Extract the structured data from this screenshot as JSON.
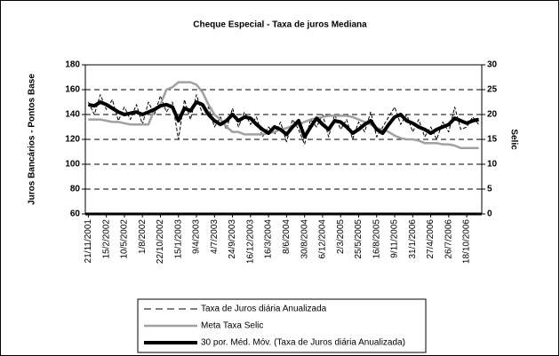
{
  "chart_data": {
    "type": "line",
    "title": "Cheque Especial - Taxa de juros Mediana",
    "y_label": "Juros Bancários - Pontos Base",
    "y2_label": "Selic",
    "categories": [
      "21/11/2001",
      null,
      null,
      "15/2/2002",
      null,
      null,
      "10/5/2002",
      null,
      null,
      "1/8/2002",
      null,
      null,
      "22/10/2002",
      null,
      null,
      "15/1/2003",
      null,
      null,
      "9/4/2003",
      null,
      null,
      "4/7/2003",
      null,
      null,
      "24/9/2003",
      null,
      null,
      "16/12/2003",
      null,
      null,
      "16/3/2004",
      null,
      null,
      "8/6/2004",
      null,
      null,
      "30/8/2004",
      null,
      null,
      "6/12/2004",
      null,
      null,
      "2/3/2005",
      null,
      null,
      "25/5/2005",
      null,
      null,
      "16/8/2005",
      null,
      null,
      "9/11/2005",
      null,
      null,
      "31/1/2006",
      null,
      null,
      "27/4/2006",
      null,
      null,
      "26/7/2006",
      null,
      null,
      "18/10/2006",
      null,
      null
    ],
    "ylim": [
      60,
      180
    ],
    "yticks": [
      60,
      80,
      100,
      120,
      140,
      160,
      180
    ],
    "y2lim": [
      0,
      30
    ],
    "y2ticks": [
      0,
      5,
      10,
      15,
      20,
      25,
      30
    ],
    "grid": true,
    "series": [
      {
        "name": "Taxa de Juros diária Anualizada",
        "color": "#000000",
        "dashed": true,
        "line_width": 1,
        "values": [
          150,
          140,
          156,
          144,
          152,
          135,
          146,
          136,
          148,
          132,
          150,
          140,
          155,
          142,
          150,
          120,
          152,
          136,
          156,
          140,
          146,
          130,
          138,
          128,
          145,
          130,
          142,
          132,
          138,
          122,
          130,
          124,
          134,
          118,
          136,
          128,
          116,
          136,
          130,
          140,
          122,
          140,
          128,
          136,
          120,
          134,
          126,
          142,
          122,
          130,
          138,
          146,
          132,
          140,
          126,
          136,
          122,
          130,
          120,
          134,
          126,
          146,
          128,
          130,
          138,
          132
        ]
      },
      {
        "name": "Meta Taxa Selic",
        "color": "#a0a0a0",
        "dashed": false,
        "line_width": 2.5,
        "axis": "y2",
        "values": [
          19,
          19,
          19,
          18.75,
          18.5,
          18.5,
          18.25,
          18,
          18,
          18,
          18,
          21,
          22,
          25,
          25.5,
          26.5,
          26.5,
          26.5,
          26,
          24.5,
          22,
          20,
          19,
          17.5,
          16.5,
          16.5,
          16,
          16,
          16,
          16,
          16.25,
          16.5,
          17,
          17.25,
          17.75,
          18,
          18.5,
          19,
          19.25,
          19.5,
          19.75,
          19.75,
          19.75,
          19.75,
          19.5,
          19,
          18.5,
          18,
          17.25,
          17,
          16.5,
          15.75,
          15.25,
          15,
          15,
          14.75,
          14.25,
          14.25,
          14.25,
          14,
          14,
          13.75,
          13.25,
          13.25,
          13.25,
          13.25
        ]
      },
      {
        "name": "30 por. Méd. Móv. (Taxa de Juros diária Anualizada)",
        "color": "#000000",
        "dashed": false,
        "line_width": 4,
        "values": [
          148,
          147,
          150,
          148,
          145,
          142,
          140,
          141,
          142,
          140,
          142,
          144,
          147,
          148,
          146,
          135,
          145,
          143,
          150,
          148,
          140,
          135,
          132,
          135,
          140,
          135,
          138,
          137,
          132,
          128,
          125,
          130,
          128,
          124,
          130,
          135,
          122,
          130,
          137,
          132,
          128,
          135,
          134,
          130,
          125,
          128,
          132,
          135,
          128,
          125,
          132,
          138,
          140,
          135,
          133,
          130,
          128,
          125,
          128,
          130,
          132,
          137,
          135,
          133,
          135,
          136
        ]
      }
    ]
  }
}
